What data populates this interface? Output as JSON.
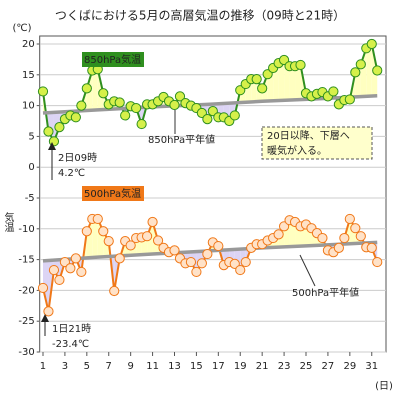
{
  "chart_data": {
    "type": "line",
    "title": "つくばにおける5月の高層気温の推移（09時と21時）",
    "y_unit": "(℃)",
    "y_label": "気温",
    "x_unit": "(日)",
    "x": [
      1,
      1.5,
      2,
      2.5,
      3,
      3.5,
      4,
      4.5,
      5,
      5.5,
      6,
      6.5,
      7,
      7.5,
      8,
      8.5,
      9,
      9.5,
      10,
      10.5,
      11,
      11.5,
      12,
      12.5,
      13,
      13.5,
      14,
      14.5,
      15,
      15.5,
      16,
      16.5,
      17,
      17.5,
      18,
      18.5,
      19,
      19.5,
      20,
      20.5,
      21,
      21.5,
      22,
      22.5,
      23,
      23.5,
      24,
      24.5,
      25,
      25.5,
      26,
      26.5,
      27,
      27.5,
      28,
      28.5,
      29,
      29.5,
      30,
      30.5,
      31,
      31.5
    ],
    "xlim": [
      0.7,
      32.3
    ],
    "xticks": [
      1,
      3,
      5,
      7,
      9,
      11,
      13,
      15,
      17,
      19,
      21,
      23,
      25,
      27,
      29,
      31
    ],
    "ylim": [
      -30,
      20
    ],
    "yticks": [
      20,
      15,
      10,
      5,
      0,
      -5,
      -10,
      -15,
      -20,
      -25,
      -30
    ],
    "grid": true,
    "series": [
      {
        "name": "850hPa気温",
        "color": "#2f8f1f",
        "marker_fill": "#d6f04a",
        "values": [
          12.3,
          5.8,
          4.2,
          6.5,
          7.8,
          8.4,
          8.1,
          10,
          12.8,
          15.7,
          15.9,
          12,
          10.2,
          10.7,
          10.5,
          8.4,
          9.9,
          9.6,
          7,
          10.2,
          10.2,
          10.7,
          11.4,
          10.7,
          10.1,
          11.5,
          10.4,
          10,
          9.6,
          8.8,
          7.8,
          9.1,
          8.1,
          8.1,
          7.5,
          8.4,
          12.5,
          13.5,
          14.3,
          14.3,
          12.8,
          15.1,
          16.1,
          16.9,
          17.4,
          16.4,
          16.4,
          16.6,
          12,
          11.5,
          11.9,
          12.2,
          11.5,
          12.3,
          10.2,
          10.9,
          11,
          15.4,
          16.7,
          19.3,
          20,
          15.7
        ]
      },
      {
        "name": "850hPa平年値",
        "color": "#999999",
        "x": [
          1,
          6,
          11,
          16,
          21,
          26,
          31.5
        ],
        "values": [
          8.8,
          9.3,
          9.8,
          10.2,
          10.7,
          11.1,
          11.6
        ]
      },
      {
        "name": "500hPa気温",
        "color": "#f07818",
        "marker_fill": "#ffe2c8",
        "values": [
          -19.6,
          -23.4,
          -16.7,
          -18.3,
          -15.4,
          -16.4,
          -14.8,
          -17,
          -10.4,
          -8.4,
          -8.4,
          -10.4,
          -12,
          -20.1,
          -14.8,
          -12,
          -12.7,
          -11.5,
          -11.4,
          -11.2,
          -8.9,
          -11.9,
          -13.1,
          -13.8,
          -13.5,
          -14.8,
          -15.6,
          -15.4,
          -17,
          -15.6,
          -14.1,
          -12.2,
          -12.8,
          -15.9,
          -15.4,
          -15.7,
          -16.7,
          -15.4,
          -13.1,
          -12.5,
          -12.5,
          -11.9,
          -11.5,
          -10.9,
          -9.6,
          -8.6,
          -8.9,
          -9.6,
          -9.3,
          -9.9,
          -10.7,
          -11.5,
          -13.5,
          -13.8,
          -13.1,
          -11.5,
          -8.4,
          -9.9,
          -11.2,
          -13,
          -13.1,
          -15.4
        ]
      },
      {
        "name": "500hPa平年値",
        "color": "#999999",
        "x": [
          1,
          6,
          11,
          16,
          21,
          26,
          31.5
        ],
        "values": [
          -15.2,
          -14.6,
          -14.1,
          -13.6,
          -13.1,
          -12.7,
          -12.2
        ]
      }
    ],
    "above_color": "#ffffc0",
    "below_color": "#dcd4f4",
    "annotations": [
      {
        "lines": [
          "2日09時",
          "4.2℃"
        ]
      },
      {
        "lines": [
          "1日21時",
          "-23.4℃"
        ]
      },
      {
        "lines": [
          "20日以降、下層へ",
          "暖気が入る。"
        ]
      }
    ]
  }
}
